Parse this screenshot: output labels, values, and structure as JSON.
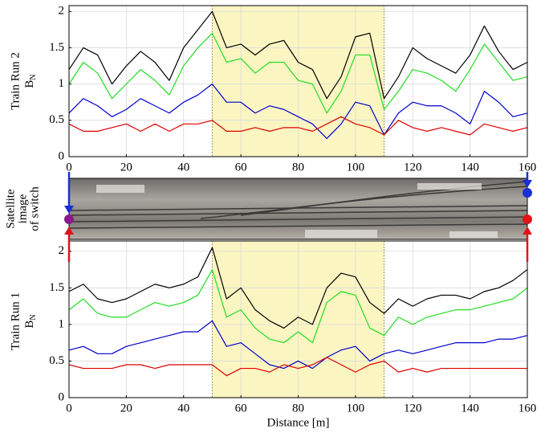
{
  "chart_data": [
    {
      "type": "line",
      "ylabel": "Train Run 2",
      "ylabel_symbol": "B",
      "ylabel_subscript": "N",
      "x": [
        0,
        5,
        10,
        15,
        20,
        25,
        30,
        35,
        40,
        45,
        50,
        55,
        60,
        65,
        70,
        75,
        80,
        85,
        90,
        95,
        100,
        105,
        110,
        115,
        120,
        125,
        130,
        135,
        140,
        145,
        150,
        155,
        160
      ],
      "series": [
        {
          "color": "#000000",
          "values": [
            1.2,
            1.5,
            1.4,
            1.0,
            1.25,
            1.45,
            1.3,
            1.05,
            1.5,
            1.75,
            2.0,
            1.5,
            1.55,
            1.4,
            1.55,
            1.6,
            1.3,
            1.2,
            0.8,
            1.1,
            1.65,
            1.7,
            0.8,
            1.1,
            1.5,
            1.35,
            1.25,
            1.15,
            1.4,
            1.8,
            1.45,
            1.2,
            1.3
          ]
        },
        {
          "color": "#22dd22",
          "values": [
            1.0,
            1.3,
            1.15,
            0.8,
            1.0,
            1.2,
            1.05,
            0.85,
            1.25,
            1.5,
            1.7,
            1.3,
            1.35,
            1.15,
            1.3,
            1.3,
            1.05,
            1.0,
            0.6,
            0.9,
            1.4,
            1.4,
            0.65,
            0.9,
            1.2,
            1.15,
            1.05,
            0.9,
            1.2,
            1.55,
            1.3,
            1.05,
            1.1
          ]
        },
        {
          "color": "#0000cc",
          "values": [
            0.6,
            0.8,
            0.7,
            0.55,
            0.65,
            0.8,
            0.7,
            0.6,
            0.75,
            0.85,
            1.0,
            0.75,
            0.75,
            0.6,
            0.7,
            0.65,
            0.55,
            0.45,
            0.25,
            0.45,
            0.75,
            0.7,
            0.3,
            0.6,
            0.75,
            0.7,
            0.7,
            0.6,
            0.45,
            0.9,
            0.75,
            0.55,
            0.6
          ]
        },
        {
          "color": "#dd0000",
          "values": [
            0.45,
            0.35,
            0.35,
            0.4,
            0.45,
            0.35,
            0.45,
            0.35,
            0.45,
            0.45,
            0.5,
            0.35,
            0.35,
            0.4,
            0.35,
            0.4,
            0.4,
            0.35,
            0.45,
            0.55,
            0.45,
            0.4,
            0.3,
            0.5,
            0.4,
            0.35,
            0.4,
            0.35,
            0.3,
            0.45,
            0.4,
            0.35,
            0.4
          ]
        }
      ],
      "xlim": [
        0,
        160
      ],
      "xticks": [
        0,
        20,
        40,
        60,
        80,
        100,
        120,
        140,
        160
      ],
      "ylim": [
        0,
        2.08
      ],
      "yticks": [
        0,
        0.5,
        1,
        1.5,
        2
      ],
      "grid": true,
      "highlight": [
        50,
        110
      ],
      "highlight_color": "#fbf5c2"
    },
    {
      "type": "line",
      "ylabel": "Train Run 1",
      "ylabel_symbol": "B",
      "ylabel_subscript": "N",
      "xlabel": "Distance [m]",
      "x": [
        0,
        5,
        10,
        15,
        20,
        25,
        30,
        35,
        40,
        45,
        50,
        55,
        60,
        65,
        70,
        75,
        80,
        85,
        90,
        95,
        100,
        105,
        110,
        115,
        120,
        125,
        130,
        135,
        140,
        145,
        150,
        155,
        160
      ],
      "series": [
        {
          "color": "#000000",
          "values": [
            1.45,
            1.55,
            1.35,
            1.3,
            1.35,
            1.45,
            1.55,
            1.5,
            1.55,
            1.65,
            2.05,
            1.35,
            1.5,
            1.2,
            1.05,
            0.95,
            1.1,
            1.0,
            1.5,
            1.7,
            1.65,
            1.3,
            1.15,
            1.35,
            1.25,
            1.35,
            1.4,
            1.4,
            1.35,
            1.45,
            1.5,
            1.6,
            1.75
          ]
        },
        {
          "color": "#22dd22",
          "values": [
            1.2,
            1.35,
            1.15,
            1.1,
            1.1,
            1.2,
            1.3,
            1.25,
            1.3,
            1.4,
            1.75,
            1.1,
            1.2,
            0.95,
            0.8,
            0.75,
            0.9,
            0.75,
            1.3,
            1.45,
            1.4,
            0.95,
            0.85,
            1.1,
            1.0,
            1.1,
            1.15,
            1.2,
            1.2,
            1.25,
            1.3,
            1.35,
            1.5
          ]
        },
        {
          "color": "#0000cc",
          "values": [
            0.65,
            0.7,
            0.6,
            0.6,
            0.7,
            0.75,
            0.8,
            0.85,
            0.9,
            0.9,
            1.05,
            0.7,
            0.75,
            0.6,
            0.45,
            0.4,
            0.5,
            0.4,
            0.55,
            0.65,
            0.7,
            0.5,
            0.6,
            0.65,
            0.6,
            0.65,
            0.7,
            0.75,
            0.75,
            0.75,
            0.8,
            0.8,
            0.85
          ]
        },
        {
          "color": "#dd0000",
          "values": [
            0.45,
            0.4,
            0.4,
            0.4,
            0.45,
            0.45,
            0.4,
            0.45,
            0.45,
            0.45,
            0.45,
            0.3,
            0.4,
            0.4,
            0.35,
            0.45,
            0.4,
            0.45,
            0.55,
            0.45,
            0.35,
            0.45,
            0.5,
            0.35,
            0.4,
            0.35,
            0.4,
            0.4,
            0.4,
            0.4,
            0.4,
            0.4,
            0.4
          ]
        }
      ],
      "xlim": [
        0,
        160
      ],
      "xticks": [
        0,
        20,
        40,
        60,
        80,
        100,
        120,
        140,
        160
      ],
      "ylim": [
        0,
        2.14
      ],
      "yticks": [
        0,
        0.5,
        1,
        1.5,
        2
      ],
      "grid": true,
      "highlight": [
        50,
        110
      ],
      "highlight_color": "#fbf5c2"
    }
  ],
  "image_panel": {
    "label": [
      "Satellite",
      "image",
      "of switch"
    ]
  }
}
